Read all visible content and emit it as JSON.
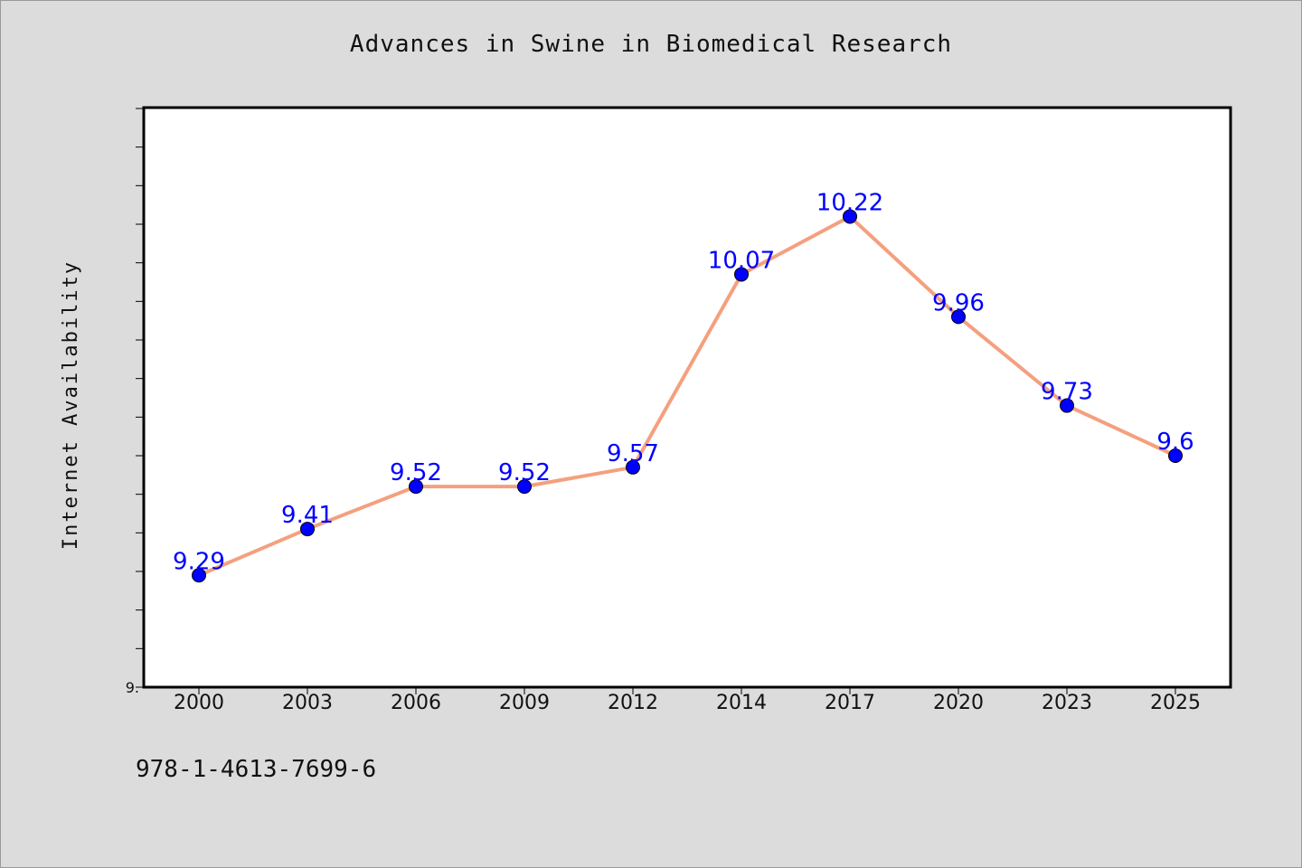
{
  "title": "Advances in Swine in Biomedical Research",
  "footer_text": "978-1-4613-7699-6",
  "chart_data": {
    "type": "line",
    "title": "Advances in Swine in Biomedical Research",
    "xlabel": "",
    "ylabel": "Internet Availability",
    "categories": [
      "2000",
      "2003",
      "2006",
      "2009",
      "2012",
      "2014",
      "2017",
      "2020",
      "2023",
      "2025"
    ],
    "series": [
      {
        "values": [
          9.29,
          9.41,
          9.52,
          9.52,
          9.57,
          10.07,
          10.22,
          9.96,
          9.73,
          9.6
        ],
        "data_labels": [
          "9.29",
          "9.41",
          "9.52",
          "9.52",
          "9.57",
          "10.07",
          "10.22",
          "9.96",
          "9.73",
          "9.6"
        ],
        "line_color": "#f4a07e",
        "marker_color": "#0000ff"
      }
    ],
    "ylim": [
      9.0,
      10.5
    ],
    "y_tick_step": 0.1,
    "y_tick_labels": [
      {
        "value": 9.0,
        "label": "9."
      }
    ],
    "grid": false,
    "legend": "none"
  }
}
